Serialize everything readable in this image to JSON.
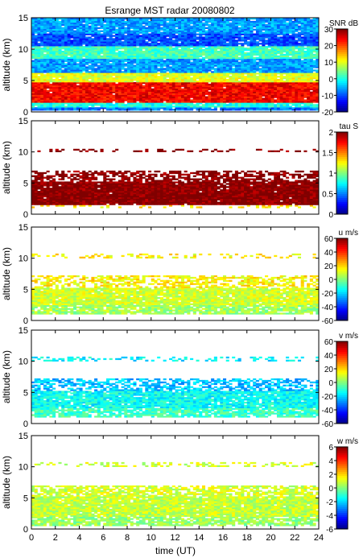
{
  "figure": {
    "title": "Esrange MST radar 20080802",
    "xlabel": "time (UT)"
  },
  "chart_data": [
    {
      "type": "heatmap",
      "quantity": "SNR",
      "ylabel": "altitude (km)",
      "cb_label": "SNR dB",
      "xlim": [
        0,
        24
      ],
      "ylim": [
        0,
        15
      ],
      "x_ticks": [
        0,
        2,
        4,
        6,
        8,
        10,
        12,
        14,
        16,
        18,
        20,
        22,
        24
      ],
      "y_ticks": [
        0,
        5,
        10,
        15
      ],
      "clim": [
        -20,
        30
      ],
      "cb_ticks": [
        -20,
        -10,
        0,
        10,
        20,
        30
      ],
      "colormap": "jet",
      "layers": [
        {
          "z_range": [
            0.2,
            0.8
          ],
          "value": -8,
          "coverage": 0.95
        },
        {
          "z_range": [
            0.8,
            1.6
          ],
          "value": 0,
          "coverage": 0.95
        },
        {
          "z_range": [
            1.6,
            4.8
          ],
          "value": 24,
          "coverage": 0.98
        },
        {
          "z_range": [
            4.8,
            6.3
          ],
          "value": 10,
          "coverage": 0.95
        },
        {
          "z_range": [
            6.3,
            8.6
          ],
          "value": -6,
          "coverage": 0.95
        },
        {
          "z_range": [
            8.6,
            10.6
          ],
          "value": 2,
          "coverage": 0.95
        },
        {
          "z_range": [
            10.6,
            12.6
          ],
          "value": -10,
          "coverage": 0.95
        },
        {
          "z_range": [
            12.6,
            15.0
          ],
          "value": -6,
          "coverage": 0.95
        }
      ]
    },
    {
      "type": "heatmap",
      "quantity": "tau",
      "ylabel": "altitude (km)",
      "cb_label": "tau S",
      "xlim": [
        0,
        24
      ],
      "ylim": [
        0,
        15
      ],
      "x_ticks": [
        0,
        2,
        4,
        6,
        8,
        10,
        12,
        14,
        16,
        18,
        20,
        22,
        24
      ],
      "y_ticks": [
        0,
        5,
        10,
        15
      ],
      "clim": [
        0,
        2
      ],
      "cb_ticks": [
        0,
        0.5,
        1,
        1.5,
        2
      ],
      "colormap": "jet",
      "layers": [
        {
          "z_range": [
            1.0,
            1.5
          ],
          "value": 1.3,
          "coverage": 0.25
        },
        {
          "z_range": [
            1.5,
            5.2
          ],
          "value": 2.0,
          "coverage": 0.97
        },
        {
          "z_range": [
            5.2,
            7.0
          ],
          "value": 2.0,
          "coverage": 0.6
        },
        {
          "z_range": [
            10.0,
            10.6
          ],
          "value": 2.0,
          "coverage": 0.3
        }
      ]
    },
    {
      "type": "heatmap",
      "quantity": "u",
      "ylabel": "altitude (km)",
      "cb_label": "u m/s",
      "xlim": [
        0,
        24
      ],
      "ylim": [
        0,
        15
      ],
      "x_ticks": [
        0,
        2,
        4,
        6,
        8,
        10,
        12,
        14,
        16,
        18,
        20,
        22,
        24
      ],
      "y_ticks": [
        0,
        5,
        10,
        15
      ],
      "clim": [
        -60,
        60
      ],
      "cb_ticks": [
        -60,
        -40,
        -20,
        0,
        20,
        40,
        60
      ],
      "colormap": "jet",
      "layers": [
        {
          "z_range": [
            1.0,
            2.5
          ],
          "value": 4,
          "coverage": 0.85
        },
        {
          "z_range": [
            2.5,
            5.2
          ],
          "value": 10,
          "coverage": 0.95
        },
        {
          "z_range": [
            5.2,
            7.2
          ],
          "value": 16,
          "coverage": 0.6
        },
        {
          "z_range": [
            10.0,
            10.8
          ],
          "value": 16,
          "coverage": 0.3
        }
      ]
    },
    {
      "type": "heatmap",
      "quantity": "v",
      "ylabel": "altitude (km)",
      "cb_label": "v m/s",
      "xlim": [
        0,
        24
      ],
      "ylim": [
        0,
        15
      ],
      "x_ticks": [
        0,
        2,
        4,
        6,
        8,
        10,
        12,
        14,
        16,
        18,
        20,
        22,
        24
      ],
      "y_ticks": [
        0,
        5,
        10,
        15
      ],
      "clim": [
        -60,
        60
      ],
      "cb_ticks": [
        -60,
        -40,
        -20,
        0,
        20,
        40,
        60
      ],
      "colormap": "jet",
      "layers": [
        {
          "z_range": [
            1.0,
            2.5
          ],
          "value": -8,
          "coverage": 0.85
        },
        {
          "z_range": [
            2.5,
            5.2
          ],
          "value": -14,
          "coverage": 0.95
        },
        {
          "z_range": [
            5.2,
            7.2
          ],
          "value": -22,
          "coverage": 0.6
        },
        {
          "z_range": [
            10.0,
            10.8
          ],
          "value": -16,
          "coverage": 0.3
        }
      ]
    },
    {
      "type": "heatmap",
      "quantity": "w",
      "ylabel": "altitude (km)",
      "cb_label": "w m/s",
      "xlim": [
        0,
        24
      ],
      "ylim": [
        0,
        15
      ],
      "x_ticks": [
        0,
        2,
        4,
        6,
        8,
        10,
        12,
        14,
        16,
        18,
        20,
        22,
        24
      ],
      "y_ticks": [
        0,
        5,
        10,
        15
      ],
      "clim": [
        -6,
        6
      ],
      "cb_ticks": [
        -6,
        -4,
        -2,
        0,
        2,
        4,
        6
      ],
      "colormap": "jet",
      "layers": [
        {
          "z_range": [
            0.5,
            2.0
          ],
          "value": 0.3,
          "coverage": 0.8
        },
        {
          "z_range": [
            2.0,
            5.2
          ],
          "value": 0.8,
          "coverage": 0.95
        },
        {
          "z_range": [
            5.2,
            7.0
          ],
          "value": 1.0,
          "coverage": 0.7
        },
        {
          "z_range": [
            10.0,
            10.8
          ],
          "value": 1.0,
          "coverage": 0.3
        }
      ]
    }
  ]
}
